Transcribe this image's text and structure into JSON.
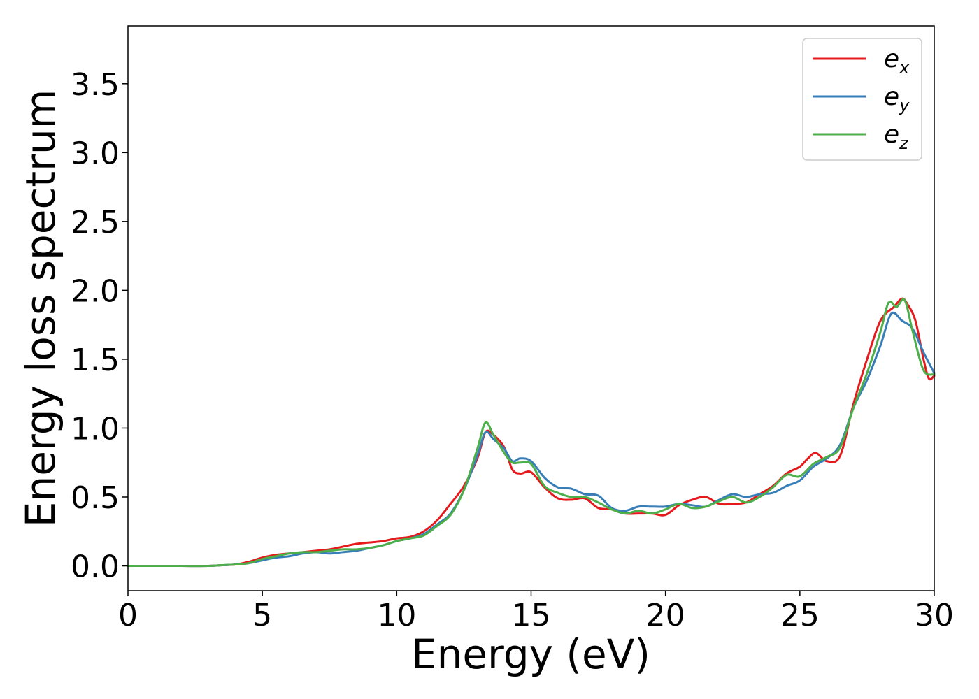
{
  "chart_data": {
    "type": "line",
    "title": "",
    "xlabel": "Energy (eV)",
    "ylabel": "Energy loss spectrum",
    "xlim": [
      0,
      30
    ],
    "ylim": [
      -0.18,
      3.92
    ],
    "xticks": [
      0,
      5,
      10,
      15,
      20,
      25,
      30
    ],
    "xtick_labels": [
      "0",
      "5",
      "10",
      "15",
      "20",
      "25",
      "30"
    ],
    "yticks": [
      0.0,
      0.5,
      1.0,
      1.5,
      2.0,
      2.5,
      3.0,
      3.5
    ],
    "ytick_labels": [
      "0.0",
      "0.5",
      "1.0",
      "1.5",
      "2.0",
      "2.5",
      "3.0",
      "3.5"
    ],
    "grid": false,
    "legend_position": "top-right",
    "series": [
      {
        "name": "e",
        "subscript": "x",
        "color": "#e41a1c",
        "x": [
          0,
          1,
          2,
          3,
          3.5,
          4,
          4.5,
          5,
          5.5,
          6,
          6.5,
          7,
          7.5,
          8,
          8.5,
          9,
          9.5,
          10,
          10.5,
          11,
          11.5,
          12,
          12.5,
          13,
          13.3,
          13.6,
          14,
          14.3,
          14.6,
          15,
          15.5,
          16,
          16.5,
          17,
          17.5,
          18,
          18.5,
          19,
          19.5,
          20,
          20.5,
          21,
          21.5,
          22,
          22.5,
          23,
          23.5,
          24,
          24.5,
          25,
          25.3,
          25.6,
          26,
          26.5,
          27,
          27.5,
          28,
          28.5,
          28.8,
          29,
          29.3,
          29.6,
          29.8,
          30
        ],
        "y": [
          0.0,
          0.0,
          0.0,
          0.0,
          0.005,
          0.01,
          0.03,
          0.06,
          0.08,
          0.09,
          0.1,
          0.11,
          0.12,
          0.14,
          0.16,
          0.17,
          0.18,
          0.2,
          0.21,
          0.25,
          0.33,
          0.45,
          0.58,
          0.78,
          0.97,
          0.95,
          0.86,
          0.7,
          0.67,
          0.68,
          0.57,
          0.49,
          0.48,
          0.49,
          0.42,
          0.41,
          0.38,
          0.38,
          0.38,
          0.37,
          0.44,
          0.48,
          0.5,
          0.45,
          0.45,
          0.46,
          0.52,
          0.58,
          0.67,
          0.72,
          0.78,
          0.82,
          0.76,
          0.8,
          1.18,
          1.5,
          1.78,
          1.88,
          1.94,
          1.9,
          1.78,
          1.5,
          1.36,
          1.38
        ]
      },
      {
        "name": "e",
        "subscript": "y",
        "color": "#377eb8",
        "x": [
          0,
          1,
          2,
          3,
          3.5,
          4,
          4.5,
          5,
          5.5,
          6,
          6.5,
          7,
          7.5,
          8,
          8.5,
          9,
          9.5,
          10,
          10.5,
          11,
          11.5,
          12,
          12.5,
          13,
          13.3,
          13.6,
          14,
          14.3,
          14.6,
          15,
          15.5,
          16,
          16.5,
          17,
          17.5,
          18,
          18.5,
          19,
          19.5,
          20,
          20.5,
          21,
          21.5,
          22,
          22.5,
          23,
          23.5,
          24,
          24.5,
          25,
          25.5,
          26,
          26.5,
          27,
          27.5,
          28,
          28.4,
          28.8,
          29.2,
          29.6,
          30
        ],
        "y": [
          0.0,
          0.0,
          0.0,
          0.0,
          0.005,
          0.01,
          0.02,
          0.04,
          0.06,
          0.07,
          0.09,
          0.1,
          0.09,
          0.1,
          0.11,
          0.13,
          0.15,
          0.18,
          0.2,
          0.23,
          0.3,
          0.38,
          0.55,
          0.8,
          0.97,
          0.92,
          0.85,
          0.76,
          0.78,
          0.76,
          0.64,
          0.57,
          0.56,
          0.52,
          0.51,
          0.42,
          0.4,
          0.43,
          0.43,
          0.43,
          0.45,
          0.44,
          0.43,
          0.48,
          0.52,
          0.5,
          0.52,
          0.53,
          0.58,
          0.62,
          0.72,
          0.78,
          0.88,
          1.15,
          1.35,
          1.6,
          1.83,
          1.78,
          1.72,
          1.55,
          1.4
        ]
      },
      {
        "name": "e",
        "subscript": "z",
        "color": "#4daf4a",
        "x": [
          0,
          1,
          2,
          3,
          3.5,
          4,
          4.5,
          5,
          5.5,
          6,
          6.5,
          7,
          7.5,
          8,
          8.5,
          9,
          9.5,
          10,
          10.5,
          11,
          11.5,
          12,
          12.5,
          13,
          13.3,
          13.6,
          14,
          14.3,
          14.6,
          15,
          15.5,
          16,
          16.5,
          17,
          17.5,
          18,
          18.5,
          19,
          19.5,
          20,
          20.5,
          21,
          21.5,
          22,
          22.5,
          23,
          23.5,
          24,
          24.5,
          25,
          25.5,
          26,
          26.5,
          27,
          27.5,
          28,
          28.3,
          28.6,
          28.9,
          29.2,
          29.6,
          30
        ],
        "y": [
          0.0,
          0.0,
          0.0,
          0.0,
          0.005,
          0.01,
          0.02,
          0.05,
          0.07,
          0.09,
          0.1,
          0.1,
          0.11,
          0.12,
          0.12,
          0.13,
          0.15,
          0.18,
          0.2,
          0.22,
          0.29,
          0.37,
          0.55,
          0.85,
          1.04,
          0.95,
          0.82,
          0.75,
          0.75,
          0.74,
          0.58,
          0.53,
          0.5,
          0.5,
          0.46,
          0.41,
          0.38,
          0.4,
          0.38,
          0.41,
          0.45,
          0.42,
          0.43,
          0.47,
          0.5,
          0.46,
          0.5,
          0.57,
          0.66,
          0.65,
          0.74,
          0.79,
          0.86,
          1.15,
          1.4,
          1.7,
          1.91,
          1.88,
          1.93,
          1.7,
          1.42,
          1.39
        ]
      }
    ]
  }
}
